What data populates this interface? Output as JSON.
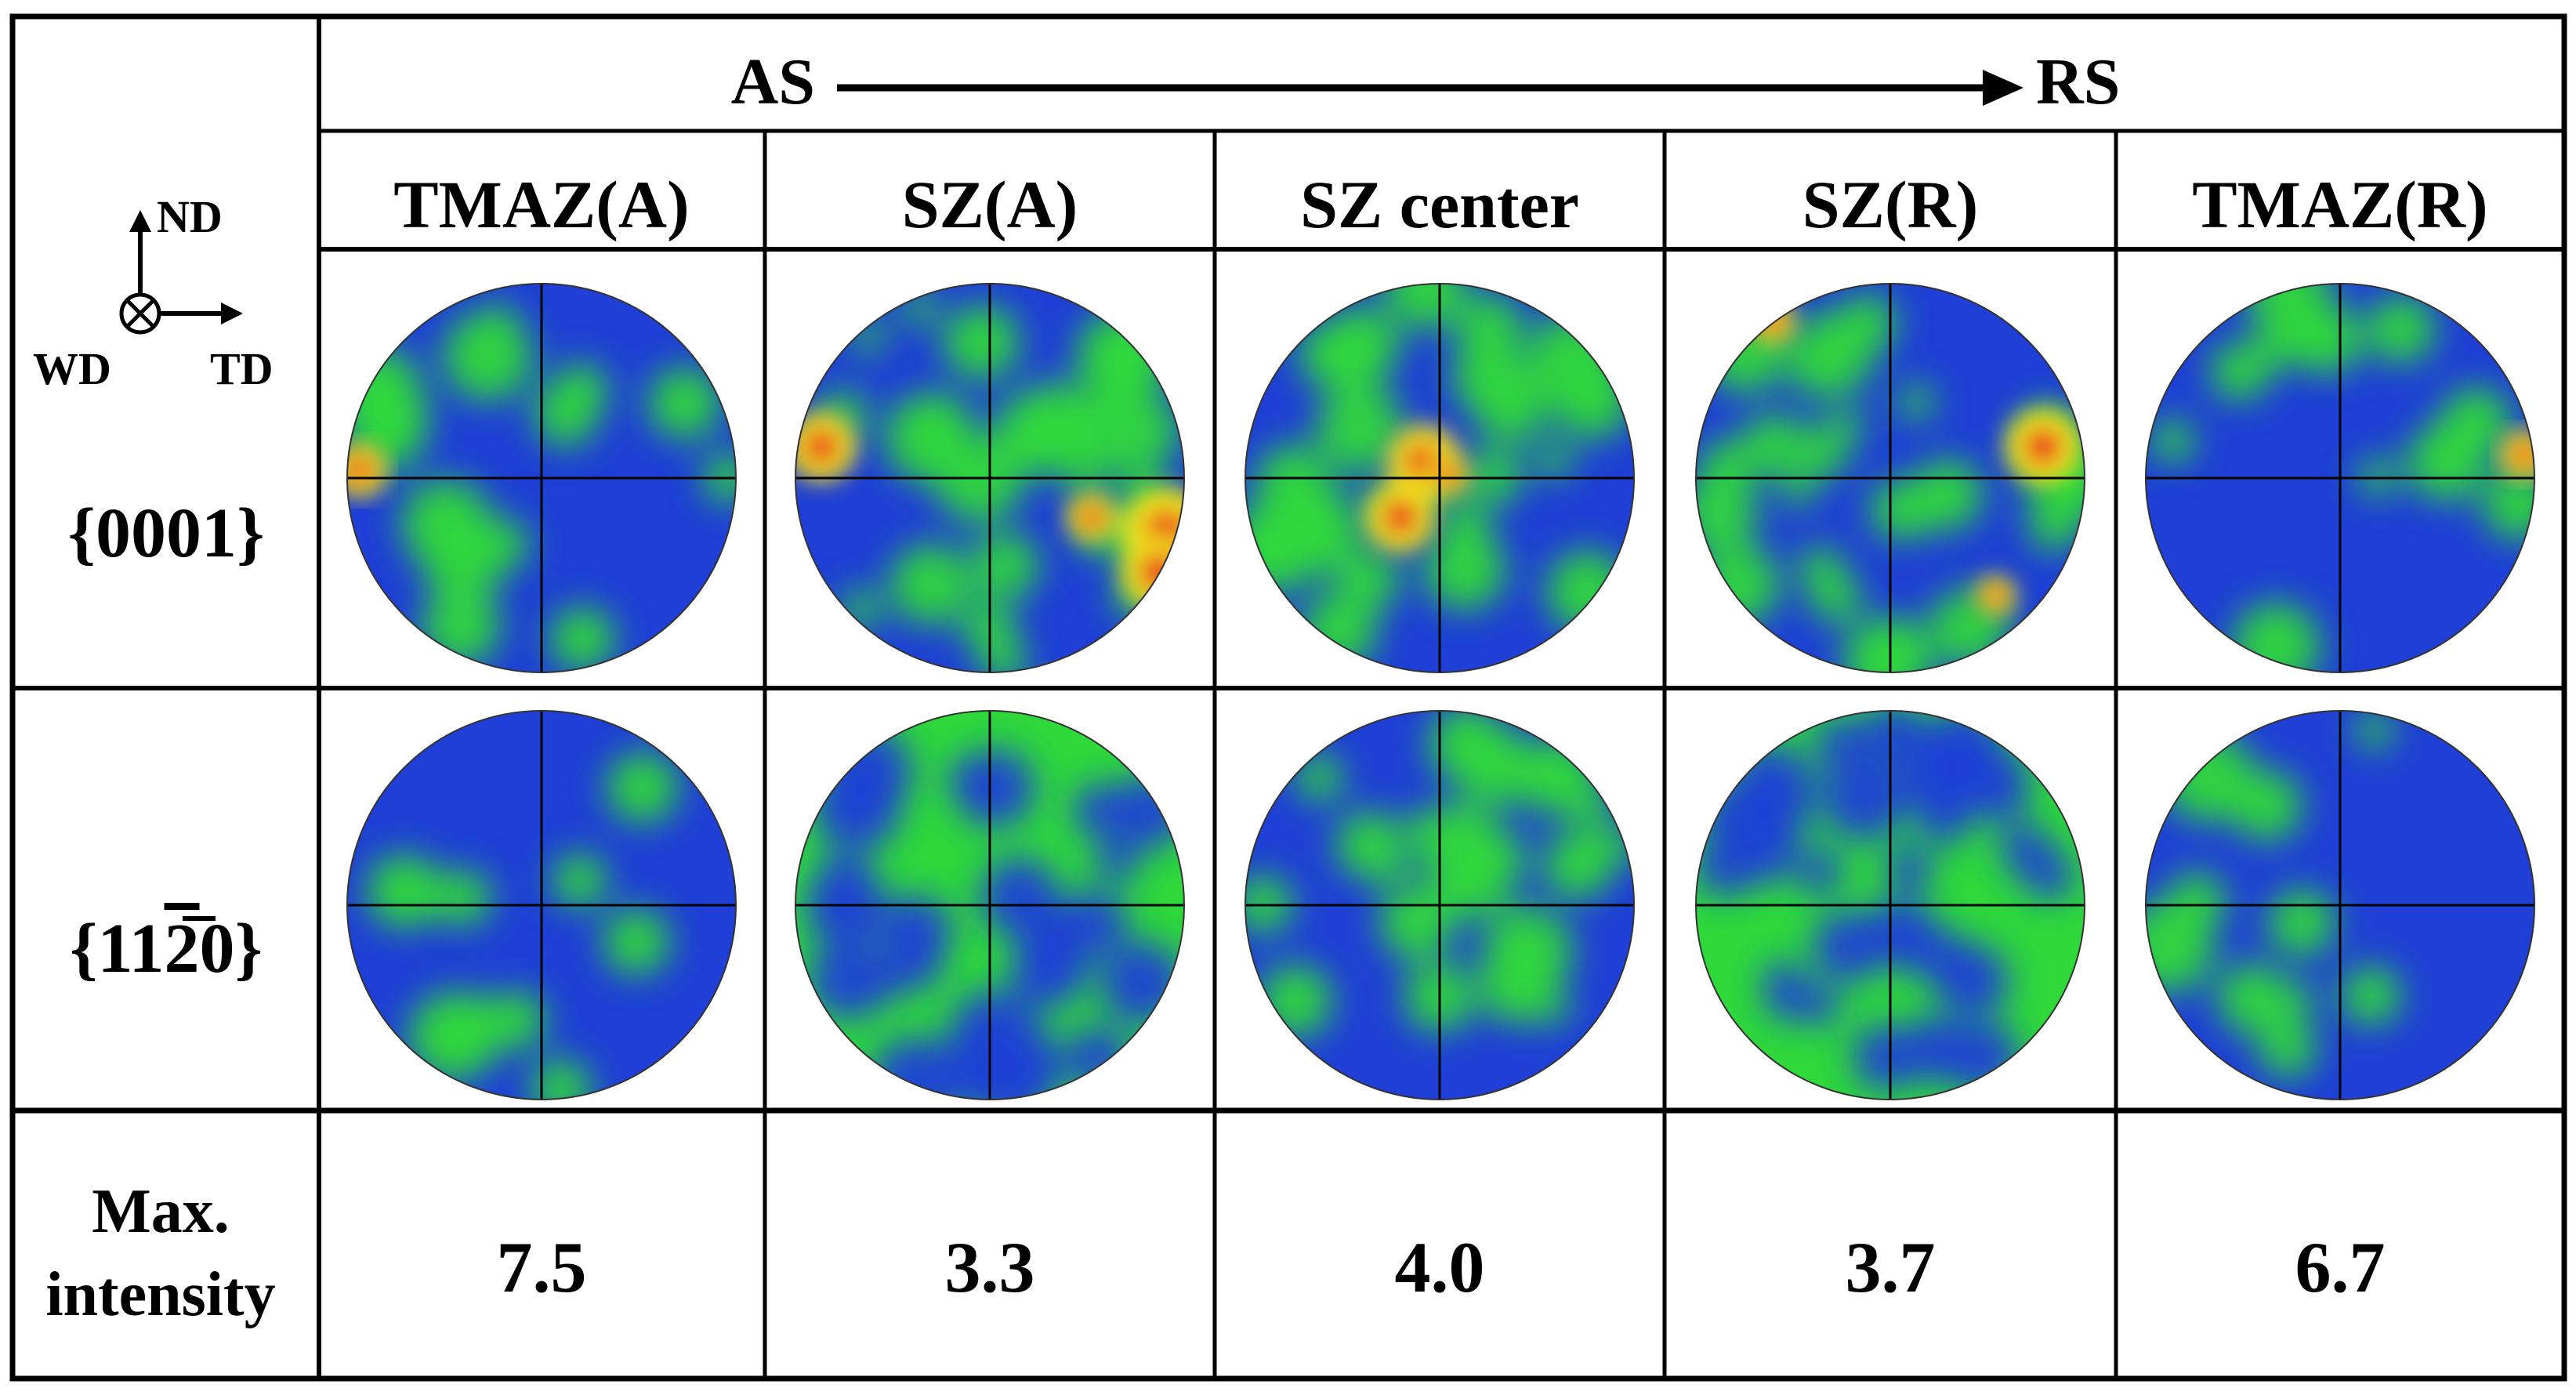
{
  "header": {
    "left_label": "AS",
    "right_label": "RS"
  },
  "columns": [
    {
      "label": "TMAZ(A)",
      "max_intensity": "7.5"
    },
    {
      "label": "SZ(A)",
      "max_intensity": "3.3"
    },
    {
      "label": "SZ center",
      "max_intensity": "4.0"
    },
    {
      "label": "SZ(R)",
      "max_intensity": "3.7"
    },
    {
      "label": "TMAZ(R)",
      "max_intensity": "6.7"
    }
  ],
  "axes": {
    "nd": "ND",
    "td": "TD",
    "wd": "WD"
  },
  "rows": {
    "plane_0001": "{0001}",
    "plane_1120_prefix": "{11",
    "plane_1120_bar_digit": "2",
    "plane_1120_suffix": "0}",
    "max_label_line1": "Max.",
    "max_label_line2": "intensity"
  },
  "colors": {
    "low": "#1f3fd6",
    "mid": "#2fd93a",
    "high_yellow": "#f2e21a",
    "high_red": "#e8241c",
    "grid": "#000000"
  }
}
